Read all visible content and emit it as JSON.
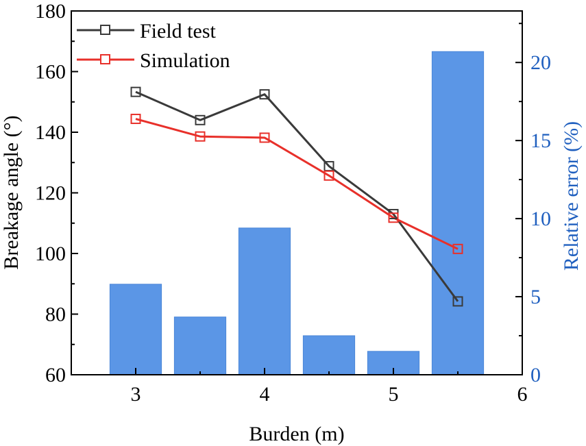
{
  "chart_data": {
    "type": "bar+line",
    "xlabel": "Burden (m)",
    "ylabel_left": "Breakage angle (°)",
    "ylabel_right": "Relative error (%)",
    "xlim": [
      2.5,
      6
    ],
    "ylim_left": [
      60,
      180
    ],
    "ylim_right": [
      0,
      23.3
    ],
    "x_ticks": [
      "3",
      "4",
      "5",
      "6"
    ],
    "y_left_ticks": [
      "60",
      "80",
      "100",
      "120",
      "140",
      "160",
      "180"
    ],
    "y_right_ticks": [
      "0",
      "5",
      "10",
      "15",
      "20"
    ],
    "bars": {
      "name": "Relative error",
      "x": [
        3,
        3.5,
        4,
        4.5,
        5,
        5.5
      ],
      "values": [
        5.8,
        3.7,
        9.4,
        2.5,
        1.5,
        20.7
      ],
      "color": "#5b96e6"
    },
    "series": [
      {
        "name": "Field test",
        "x": [
          3,
          3.5,
          4,
          4.5,
          5,
          5.5
        ],
        "values": [
          153.3,
          144.0,
          152.5,
          128.8,
          113.0,
          84.2
        ],
        "color": "#3a3a3a"
      },
      {
        "name": "Simulation",
        "x": [
          3,
          3.5,
          4,
          4.5,
          5,
          5.5
        ],
        "values": [
          144.4,
          138.6,
          138.2,
          125.7,
          111.8,
          101.5
        ],
        "color": "#e8302a"
      }
    ],
    "legend": [
      "Field test",
      "Simulation"
    ],
    "legend_position": "top-left"
  }
}
